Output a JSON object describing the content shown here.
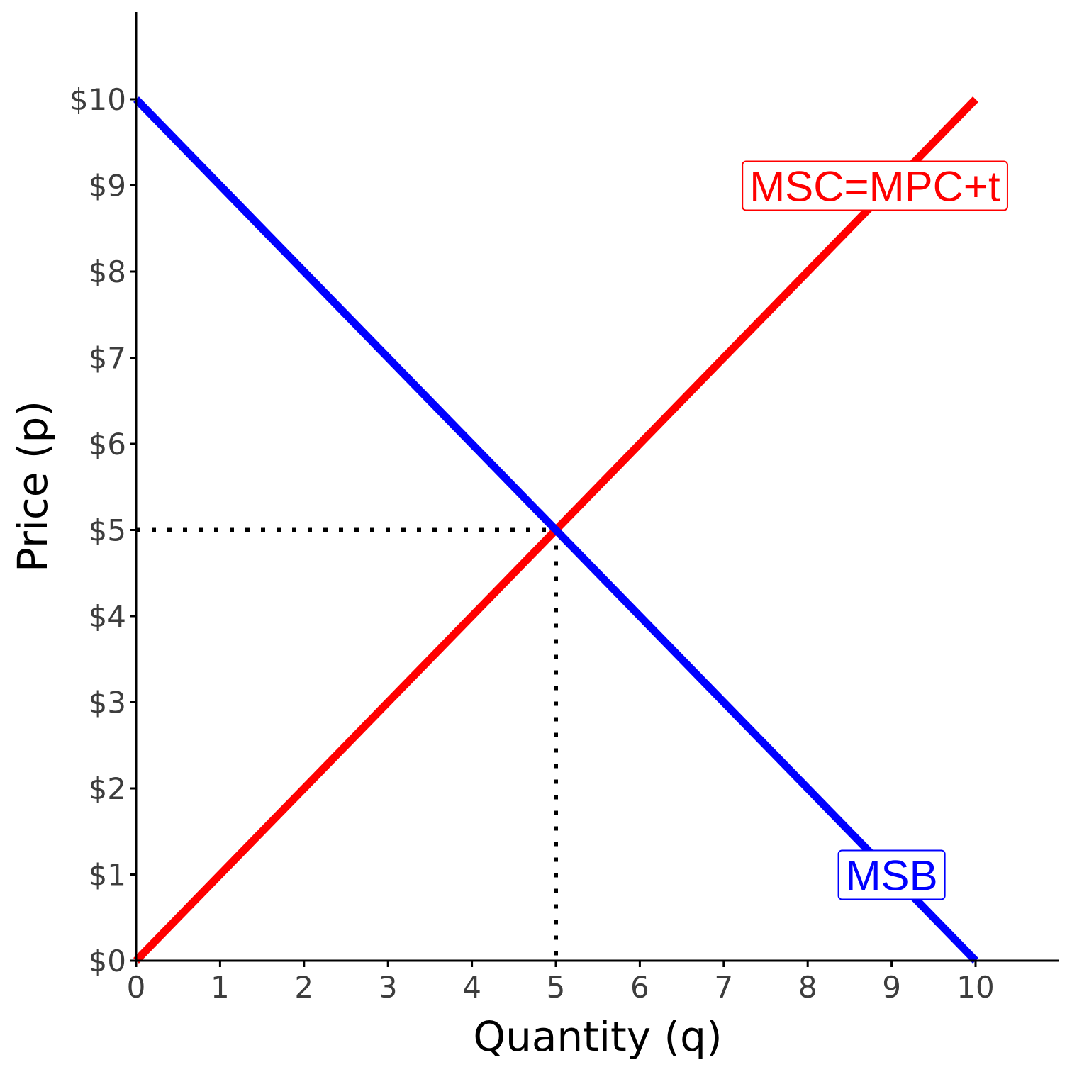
{
  "chart_data": {
    "type": "line",
    "title": "",
    "xlabel": "Quantity (q)",
    "ylabel": "Price (p)",
    "xlim": [
      0,
      11
    ],
    "ylim": [
      0,
      11
    ],
    "grid": false,
    "x_ticks": [
      0,
      1,
      2,
      3,
      4,
      5,
      6,
      7,
      8,
      9,
      10
    ],
    "x_tick_labels": [
      "0",
      "1",
      "2",
      "3",
      "4",
      "5",
      "6",
      "7",
      "8",
      "9",
      "10"
    ],
    "y_ticks": [
      0,
      1,
      2,
      3,
      4,
      5,
      6,
      7,
      8,
      9,
      10
    ],
    "y_tick_labels": [
      "$0",
      "$1",
      "$2",
      "$3",
      "$4",
      "$5",
      "$6",
      "$7",
      "$8",
      "$9",
      "$10"
    ],
    "series": [
      {
        "name": "MSC=MPC+t",
        "color": "#ff0000",
        "x": [
          0,
          10
        ],
        "y": [
          0,
          10
        ],
        "label_pos": [
          8.8,
          9
        ]
      },
      {
        "name": "MSB",
        "color": "#0000ff",
        "x": [
          0,
          10
        ],
        "y": [
          10,
          0
        ],
        "label_pos": [
          9,
          1
        ]
      }
    ],
    "reference_lines": {
      "x": 5,
      "y": 5,
      "style": "dotted",
      "color": "#000000"
    }
  }
}
